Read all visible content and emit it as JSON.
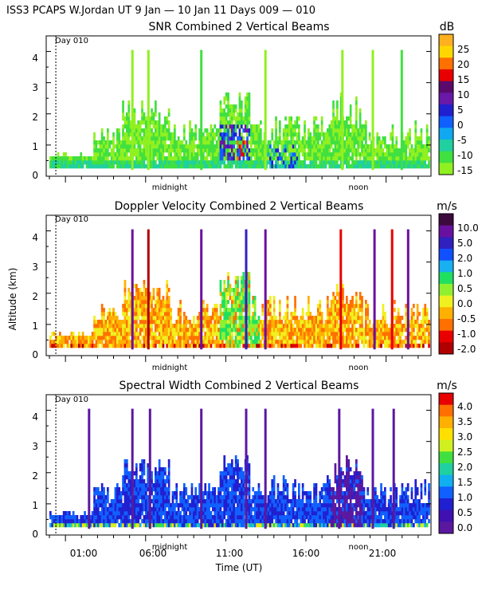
{
  "header": {
    "title": "ISS3 PCAPS W.Jordan UT    9 Jan — 10 Jan 11 Days 009 — 010"
  },
  "figure": {
    "ylabel": "Altitude (km)",
    "xlabel": "Time (UT)",
    "xticks": [
      "01:00",
      "06:00",
      "11:00",
      "16:00",
      "21:00"
    ],
    "xtick_hours": [
      1,
      6,
      11,
      16,
      21
    ],
    "day_marker_hour": 0.4,
    "xlim_hours": [
      -0.2,
      23.8
    ]
  },
  "chart_data": [
    {
      "type": "heatmap",
      "title": "SNR Combined 2 Vertical Beams",
      "day_label": "Day 010",
      "units": "dB",
      "ylabel": "Altitude (km)",
      "ylim": [
        0,
        4.5
      ],
      "yticks": [
        "0",
        "1",
        "2",
        "3",
        "4"
      ],
      "time_labels": [
        "midnight",
        "noon"
      ],
      "colorbar": {
        "labels": [
          "25",
          "20",
          "15",
          "10",
          "5",
          "0",
          "-5",
          "-10",
          "-15"
        ],
        "colors": [
          "#ffb020",
          "#ffd700",
          "#ff7000",
          "#e80000",
          "#5a0a6a",
          "#6a18a8",
          "#2020d0",
          "#1060ff",
          "#10a8f0",
          "#20d0a0",
          "#40e040",
          "#90f020"
        ]
      }
    },
    {
      "type": "heatmap",
      "title": "Doppler Velocity Combined 2 Vertical Beams",
      "day_label": "Day 010",
      "units": "m/s",
      "ylabel": "Altitude (km)",
      "ylim": [
        0,
        4.5
      ],
      "yticks": [
        "0",
        "1",
        "2",
        "3",
        "4"
      ],
      "time_labels": [
        "midnight",
        "noon"
      ],
      "colorbar": {
        "labels": [
          "10.0",
          "5.0",
          "2.0",
          "1.0",
          "0.5",
          "0.0",
          "-0.5",
          "-1.0",
          "-2.0"
        ],
        "colors": [
          "#3c0a3c",
          "#6a10a0",
          "#3020c0",
          "#1050ff",
          "#18b0f0",
          "#20e060",
          "#90f030",
          "#f0f020",
          "#ffb000",
          "#ff7000",
          "#e80000",
          "#b00000"
        ]
      }
    },
    {
      "type": "heatmap",
      "title": "Spectral Width Combined 2 Vertical Beams",
      "day_label": "Day 010",
      "units": "m/s",
      "ylabel": "Altitude (km)",
      "ylim": [
        0,
        4.5
      ],
      "yticks": [
        "0",
        "1",
        "2",
        "3",
        "4"
      ],
      "time_labels": [
        "midnight",
        "noon"
      ],
      "colorbar": {
        "labels": [
          "4.0",
          "3.5",
          "3.0",
          "2.5",
          "2.0",
          "1.5",
          "1.0",
          "0.5",
          "0.0"
        ],
        "colors": [
          "#e80000",
          "#ff7000",
          "#ffb000",
          "#ffe000",
          "#d0f020",
          "#40e040",
          "#20d0a0",
          "#10b0f0",
          "#1060ff",
          "#2020d0",
          "#4010b0",
          "#5a18a0"
        ]
      }
    }
  ]
}
